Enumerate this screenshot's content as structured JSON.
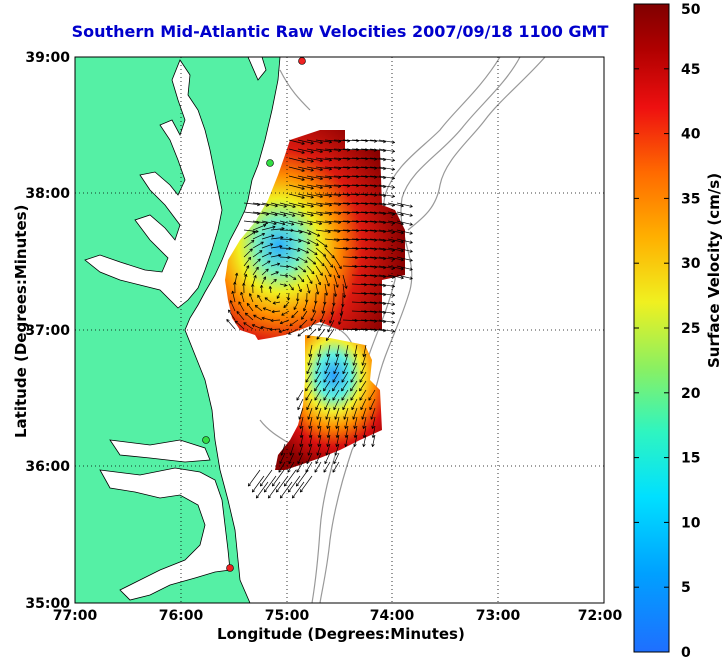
{
  "title": "Southern Mid-Atlantic Raw Velocities 2007/09/18 1100 GMT",
  "xlabel": "Longitude (Degrees:Minutes)",
  "ylabel": "Latitude (Degrees:Minutes)",
  "colorbar": {
    "label": "Surface Velocity (cm/s)",
    "ticks": [
      "0",
      "5",
      "10",
      "15",
      "20",
      "25",
      "30",
      "35",
      "40",
      "45",
      "50"
    ],
    "range": [
      0,
      50
    ]
  },
  "x_ticks": [
    "77:00",
    "76:00",
    "75:00",
    "74:00",
    "73:00",
    "72:00"
  ],
  "y_ticks": [
    "39:00",
    "38:00",
    "37:00",
    "36:00",
    "35:00"
  ],
  "colors": {
    "land": "#55f0a5",
    "sea": "#ffffff",
    "title": "#0000cc",
    "station": "#ee2222",
    "station_alt": "#33dd44",
    "bathymetry": "#999999"
  },
  "map_extent": {
    "lon": [
      -77,
      -72
    ],
    "lat": [
      35,
      39
    ]
  }
}
